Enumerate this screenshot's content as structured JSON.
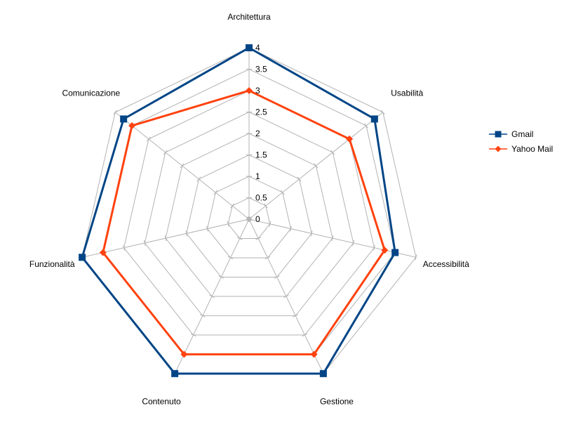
{
  "chart_data": {
    "type": "radar",
    "categories": [
      "Architettura",
      "Usabilità",
      "Accessibilità",
      "Gestione",
      "Contenuto",
      "Funzionalità",
      "Comunicazione"
    ],
    "rlim": [
      0,
      4
    ],
    "ticks": [
      "0",
      "0.5",
      "1",
      "1.5",
      "2",
      "2.5",
      "3",
      "3.5",
      "4"
    ],
    "series": [
      {
        "name": "Gmail",
        "values": [
          4,
          3.75,
          3.5,
          4,
          4,
          4,
          3.75
        ],
        "color": "#004586",
        "marker": "square"
      },
      {
        "name": "Yahoo Mail",
        "values": [
          3,
          3,
          3.25,
          3.5,
          3.5,
          3.5,
          3.5
        ],
        "color": "#ff420e",
        "marker": "diamond"
      }
    ],
    "grid": true,
    "legend_position": "right",
    "title": ""
  }
}
